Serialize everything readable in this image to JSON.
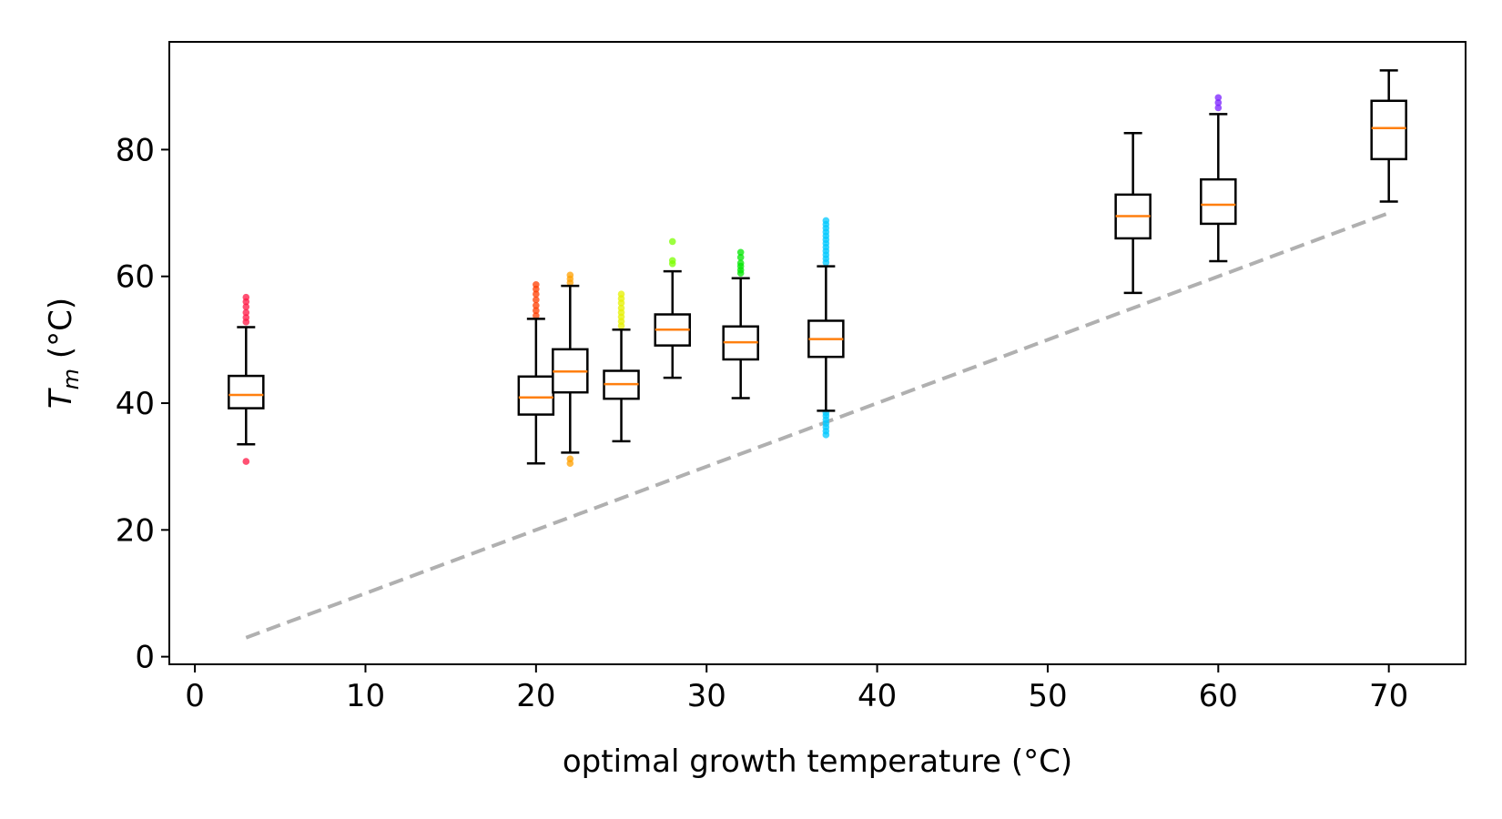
{
  "chart_data": {
    "type": "box",
    "xlabel": "optimal growth temperature (°C)",
    "ylabel_main": "T",
    "ylabel_sub": "m",
    "ylabel_unit": " (°C)",
    "xlim": [
      -1.5,
      74.5
    ],
    "ylim": [
      -1.2,
      97
    ],
    "xticks": [
      "0",
      "10",
      "20",
      "30",
      "40",
      "50",
      "60",
      "70"
    ],
    "xtick_values": [
      0,
      10,
      20,
      30,
      40,
      50,
      60,
      70
    ],
    "yticks": [
      "0",
      "20",
      "40",
      "60",
      "80"
    ],
    "ytick_values": [
      0,
      20,
      40,
      60,
      80
    ],
    "grid": false,
    "reference_line": {
      "style": "dashed",
      "color": "#b0b0b0",
      "x": [
        3,
        70
      ],
      "y": [
        3,
        70
      ]
    },
    "median_color": "#ff7f0e",
    "boxes": [
      {
        "x": 3,
        "whisker_low": 33.5,
        "q1": 39.2,
        "median": 41.3,
        "q3": 44.3,
        "whisker_high": 52.0,
        "outlier_color": "#ff1744",
        "outliers": [
          30.8,
          52.8,
          53.5,
          54.3,
          55.2,
          56.0,
          56.7
        ]
      },
      {
        "x": 20,
        "whisker_low": 30.5,
        "q1": 38.2,
        "median": 40.9,
        "q3": 44.2,
        "whisker_high": 53.3,
        "outlier_color": "#ff3d00",
        "outliers": [
          53.8,
          54.6,
          55.4,
          56.3,
          57.2,
          58.0,
          58.7
        ]
      },
      {
        "x": 22,
        "whisker_low": 32.2,
        "q1": 41.7,
        "median": 45.0,
        "q3": 48.5,
        "whisker_high": 58.5,
        "outlier_color": "#ffa000",
        "outliers": [
          30.5,
          31.2,
          59.0,
          59.6,
          60.2
        ]
      },
      {
        "x": 25,
        "whisker_low": 34.0,
        "q1": 40.7,
        "median": 43.0,
        "q3": 45.1,
        "whisker_high": 51.6,
        "outlier_color": "#e6f000",
        "outliers": [
          52.2,
          52.9,
          53.6,
          54.3,
          55.0,
          55.8,
          56.5,
          57.2
        ]
      },
      {
        "x": 28,
        "whisker_low": 44.0,
        "q1": 49.1,
        "median": 51.6,
        "q3": 54.0,
        "whisker_high": 60.8,
        "outlier_color": "#7cff00",
        "outliers": [
          62.0,
          62.5,
          65.5
        ]
      },
      {
        "x": 32,
        "whisker_low": 40.8,
        "q1": 46.9,
        "median": 49.6,
        "q3": 52.1,
        "whisker_high": 59.7,
        "outlier_color": "#00e600",
        "outliers": [
          60.5,
          61.0,
          61.6,
          62.1,
          63.0,
          63.8
        ]
      },
      {
        "x": 37,
        "whisker_low": 38.8,
        "q1": 47.3,
        "median": 50.1,
        "q3": 53.0,
        "whisker_high": 61.6,
        "outlier_color": "#00c8ff",
        "outliers": [
          35.0,
          35.6,
          36.2,
          36.8,
          37.4,
          38.0,
          38.5,
          62.2,
          62.8,
          63.4,
          64.0,
          64.6,
          65.2,
          65.8,
          66.4,
          67.0,
          67.6,
          68.2,
          68.8
        ]
      },
      {
        "x": 55,
        "whisker_low": 57.4,
        "q1": 66.0,
        "median": 69.5,
        "q3": 72.9,
        "whisker_high": 82.6,
        "outlier_color": "#00c8ff",
        "outliers": []
      },
      {
        "x": 60,
        "whisker_low": 62.4,
        "q1": 68.3,
        "median": 71.3,
        "q3": 75.3,
        "whisker_high": 85.6,
        "outlier_color": "#7a1fff",
        "outliers": [
          86.6,
          87.4,
          88.2
        ]
      },
      {
        "x": 70,
        "whisker_low": 71.8,
        "q1": 78.5,
        "median": 83.4,
        "q3": 87.7,
        "whisker_high": 92.5,
        "outlier_color": "#c000ff",
        "outliers": []
      }
    ]
  }
}
